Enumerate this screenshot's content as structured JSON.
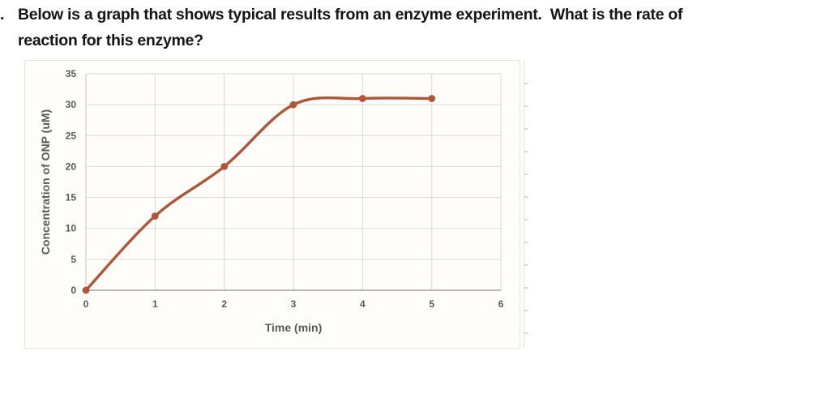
{
  "question": {
    "number_marker": ".",
    "lines": [
      "Below is a graph that shows typical results from an enzyme experiment.  What is the rate of",
      "reaction for this enzyme?"
    ]
  },
  "chart_data": {
    "type": "line",
    "title": "",
    "xlabel": "Time (min)",
    "ylabel": "Concentration of ONP (uM)",
    "x": [
      0,
      1,
      2,
      3,
      4,
      5
    ],
    "series": [
      {
        "name": "Concentration of ONP (uM)",
        "values": [
          0,
          12,
          20,
          30,
          31,
          31
        ],
        "color": "#ae5639",
        "marker": "circle",
        "smooth": true
      }
    ],
    "xlim": [
      0,
      6
    ],
    "ylim": [
      0,
      35
    ],
    "x_ticks": [
      0,
      1,
      2,
      3,
      4,
      5,
      6
    ],
    "y_ticks": [
      0,
      5,
      10,
      15,
      20,
      25,
      30,
      35
    ],
    "grid": true,
    "legend": "none",
    "colors": {
      "gridline": "#d9d9d9",
      "y_axis_line": "#c9c9c9",
      "x_axis_line": "#a3a3a3",
      "tick_label": "#595959",
      "axis_title": "#595959",
      "frame_border": "#e6e3d8",
      "frame_background": "#fefdfa"
    }
  }
}
